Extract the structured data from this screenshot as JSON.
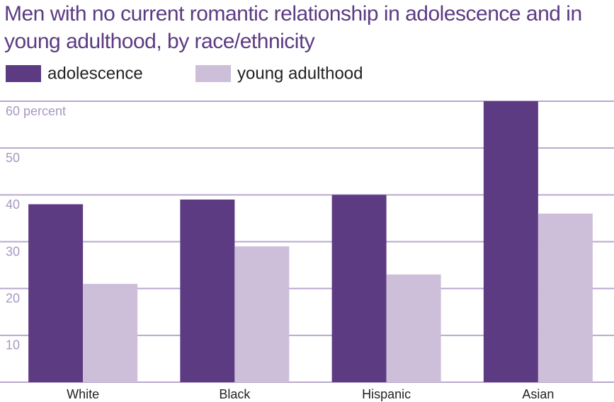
{
  "chart_data": {
    "type": "bar",
    "title": "Men with no current romantic relationship in adolescence and in young adulthood, by race/ethnicity",
    "categories": [
      "White",
      "Black",
      "Hispanic",
      "Asian"
    ],
    "series": [
      {
        "name": "adolescence",
        "color": "#5c3b82",
        "values": [
          38,
          39,
          40,
          60
        ]
      },
      {
        "name": "young adulthood",
        "color": "#cdbfda",
        "values": [
          21,
          29,
          23,
          36
        ]
      }
    ],
    "ylim": [
      0,
      60
    ],
    "yticks": [
      10,
      20,
      30,
      40,
      50,
      {
        "value": 60,
        "label": "60 percent"
      }
    ],
    "grid": true
  }
}
